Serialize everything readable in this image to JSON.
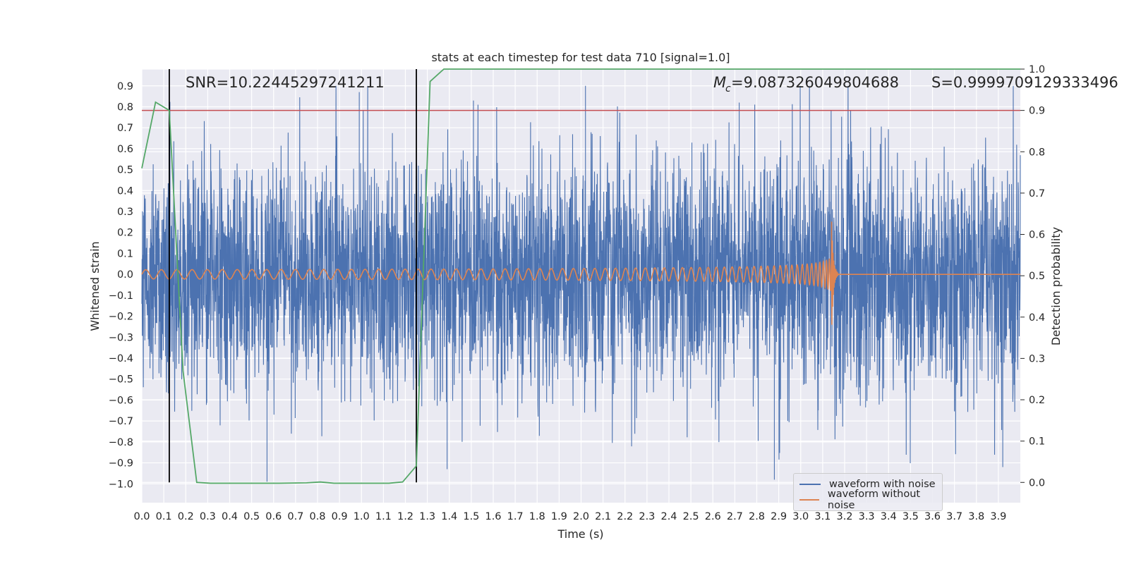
{
  "chart_data": {
    "type": "line",
    "title": "stats at each timestep for test data 710 [signal=1.0]",
    "xlabel": "Time (s)",
    "ylabel": "Whitened strain",
    "y2label": "Detection probability",
    "xlim": [
      0.0,
      4.0
    ],
    "ylim": [
      -1.09,
      0.98
    ],
    "y2lim": [
      -0.049,
      1.0
    ],
    "x_ticks": [
      "0.0",
      "0.1",
      "0.2",
      "0.3",
      "0.4",
      "0.5",
      "0.6",
      "0.7",
      "0.8",
      "0.9",
      "1.0",
      "1.1",
      "1.2",
      "1.3",
      "1.4",
      "1.5",
      "1.6",
      "1.7",
      "1.8",
      "1.9",
      "2.0",
      "2.1",
      "2.2",
      "2.3",
      "2.4",
      "2.5",
      "2.6",
      "2.7",
      "2.8",
      "2.9",
      "3.0",
      "3.1",
      "3.2",
      "3.3",
      "3.4",
      "3.5",
      "3.6",
      "3.7",
      "3.8",
      "3.9"
    ],
    "y_ticks": [
      "−1.0",
      "−0.9",
      "−0.8",
      "−0.7",
      "−0.6",
      "−0.5",
      "−0.4",
      "−0.3",
      "−0.2",
      "−0.1",
      "0.0",
      "0.1",
      "0.2",
      "0.3",
      "0.4",
      "0.5",
      "0.6",
      "0.7",
      "0.8",
      "0.9"
    ],
    "y2_ticks": [
      "0.0",
      "0.1",
      "0.2",
      "0.3",
      "0.4",
      "0.5",
      "0.6",
      "0.7",
      "0.8",
      "0.9",
      "1.0"
    ],
    "annotations": {
      "snr": "SNR=10.22445297241211",
      "mc": "=9.087326049804688",
      "mc_symbol": "M",
      "mc_subscript": "c",
      "s": "S=0.9999709129333496"
    },
    "threshold": {
      "value": 0.9,
      "axis": "y2",
      "color": "#c44e52"
    },
    "vlines": {
      "x": [
        0.125,
        1.25
      ],
      "color": "#000000"
    },
    "series": [
      {
        "name": "waveform with noise",
        "color": "#4c72b0",
        "kind": "noise",
        "x_range": [
          0.0,
          4.0
        ],
        "typical_amplitude": 0.45,
        "extremes": [
          {
            "x": 0.99,
            "y": 0.87
          },
          {
            "x": 2.02,
            "y": 0.9
          },
          {
            "x": 1.51,
            "y": 0.83
          },
          {
            "x": 2.72,
            "y": 0.82
          },
          {
            "x": 0.57,
            "y": -0.99
          },
          {
            "x": 2.88,
            "y": -0.98
          },
          {
            "x": 1.39,
            "y": -0.93
          },
          {
            "x": 3.92,
            "y": -0.92
          }
        ]
      },
      {
        "name": "waveform without noise",
        "color": "#dd8452",
        "kind": "chirp",
        "x_range": [
          0.0,
          4.0
        ],
        "start_amplitude": 0.022,
        "peak_amplitude": 0.31,
        "start_frequency_hz": 14,
        "merger_time": 3.14,
        "ringdown_end": 3.17,
        "points": []
      },
      {
        "name": "detection probability",
        "color": "#55a868",
        "axis": "y2",
        "x": [
          0.0,
          0.0625,
          0.125,
          0.1875,
          0.25,
          0.3125,
          0.375,
          0.5,
          0.625,
          0.75,
          0.8125,
          0.875,
          1.0,
          1.125,
          1.1875,
          1.25,
          1.3125,
          1.375,
          1.5,
          2.0,
          3.0,
          4.0
        ],
        "y": [
          0.76,
          0.92,
          0.9,
          0.27,
          0.0,
          -0.002,
          -0.002,
          -0.002,
          -0.002,
          -0.001,
          0.001,
          -0.002,
          -0.002,
          -0.002,
          0.001,
          0.04,
          0.97,
          1.0,
          1.0,
          1.0,
          1.0,
          1.0
        ]
      }
    ],
    "legend": {
      "position": "lower-right",
      "entries": [
        {
          "label": "waveform with noise",
          "color": "#4c72b0"
        },
        {
          "label": "waveform without noise",
          "color": "#dd8452"
        }
      ]
    }
  }
}
